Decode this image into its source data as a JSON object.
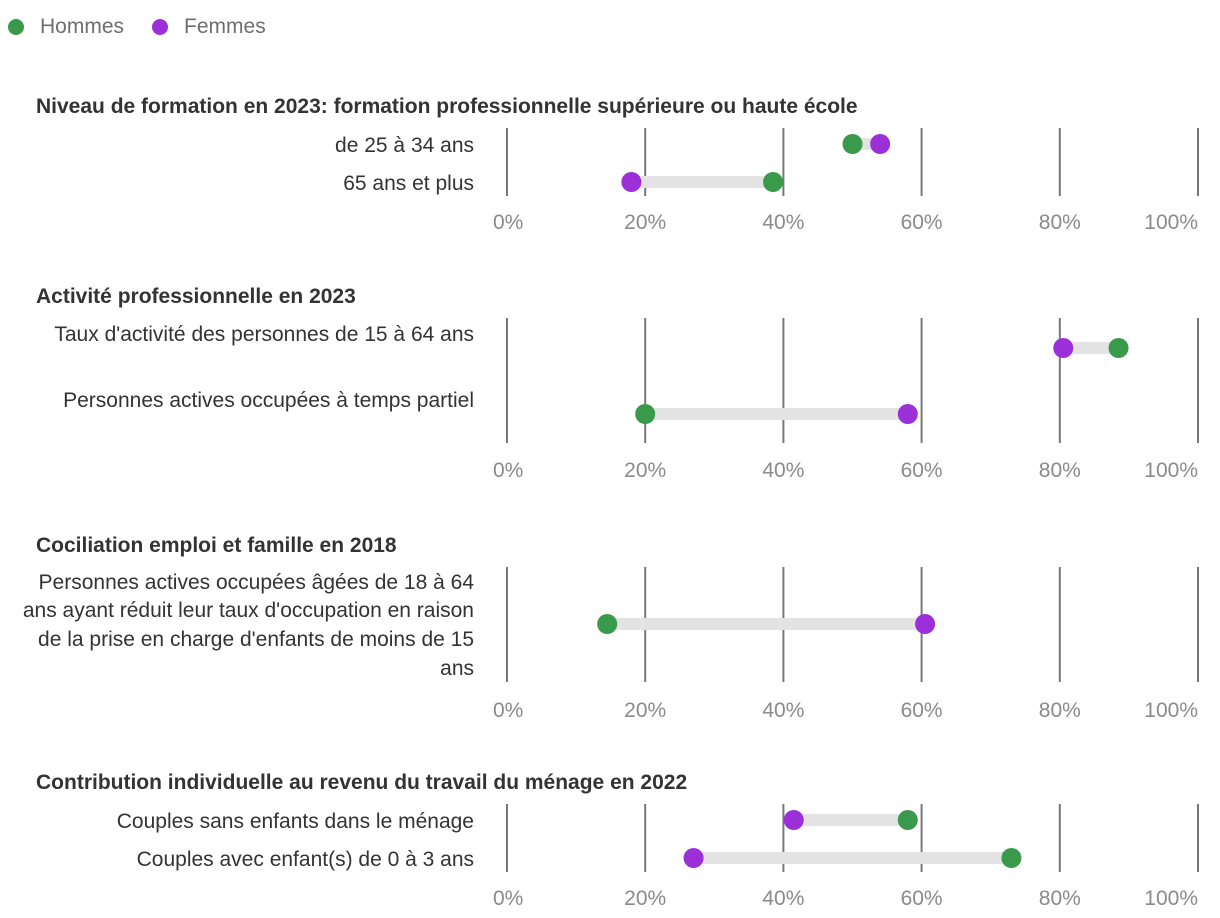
{
  "legend": [
    {
      "name": "Hommes",
      "color": "#3a9a4b"
    },
    {
      "name": "Femmes",
      "color": "#9b30d9"
    }
  ],
  "colors": {
    "range_bar": "#e3e3e3",
    "grid": "#777777"
  },
  "chart_data": {
    "type": "dumbbell",
    "x_range": [
      0,
      100
    ],
    "x_ticks": [
      "0%",
      "20%",
      "40%",
      "60%",
      "80%",
      "100%"
    ],
    "series_names": [
      "Hommes",
      "Femmes"
    ],
    "panels": [
      {
        "title": "Niveau de formation en 2023: formation professionnelle supérieure ou haute école",
        "rows": [
          {
            "label": "de 25 à 34 ans",
            "hommes": 50,
            "femmes": 54
          },
          {
            "label": "65 ans et plus",
            "hommes": 38.5,
            "femmes": 18
          }
        ]
      },
      {
        "title": "Activité professionnelle en 2023",
        "rows": [
          {
            "label": "Taux d'activité des personnes de 15 à 64 ans",
            "hommes": 88.5,
            "femmes": 80.5
          },
          {
            "label": "Personnes actives occupées à temps partiel",
            "hommes": 20,
            "femmes": 58
          }
        ]
      },
      {
        "title": "Cociliation emploi et famille en 2018",
        "rows": [
          {
            "label": "Personnes actives occupées âgées de 18 à 64 ans ayant réduit leur taux d'occupation en raison de la prise en charge d'enfants de moins de 15 ans",
            "hommes": 14.5,
            "femmes": 60.5
          }
        ]
      },
      {
        "title": "Contribution individuelle au revenu du travail du ménage en 2022",
        "rows": [
          {
            "label": "Couples sans enfants dans le ménage",
            "hommes": 58,
            "femmes": 41.5
          },
          {
            "label": "Couples avec enfant(s) de 0 à 3 ans",
            "hommes": 73,
            "femmes": 27
          }
        ]
      }
    ]
  }
}
